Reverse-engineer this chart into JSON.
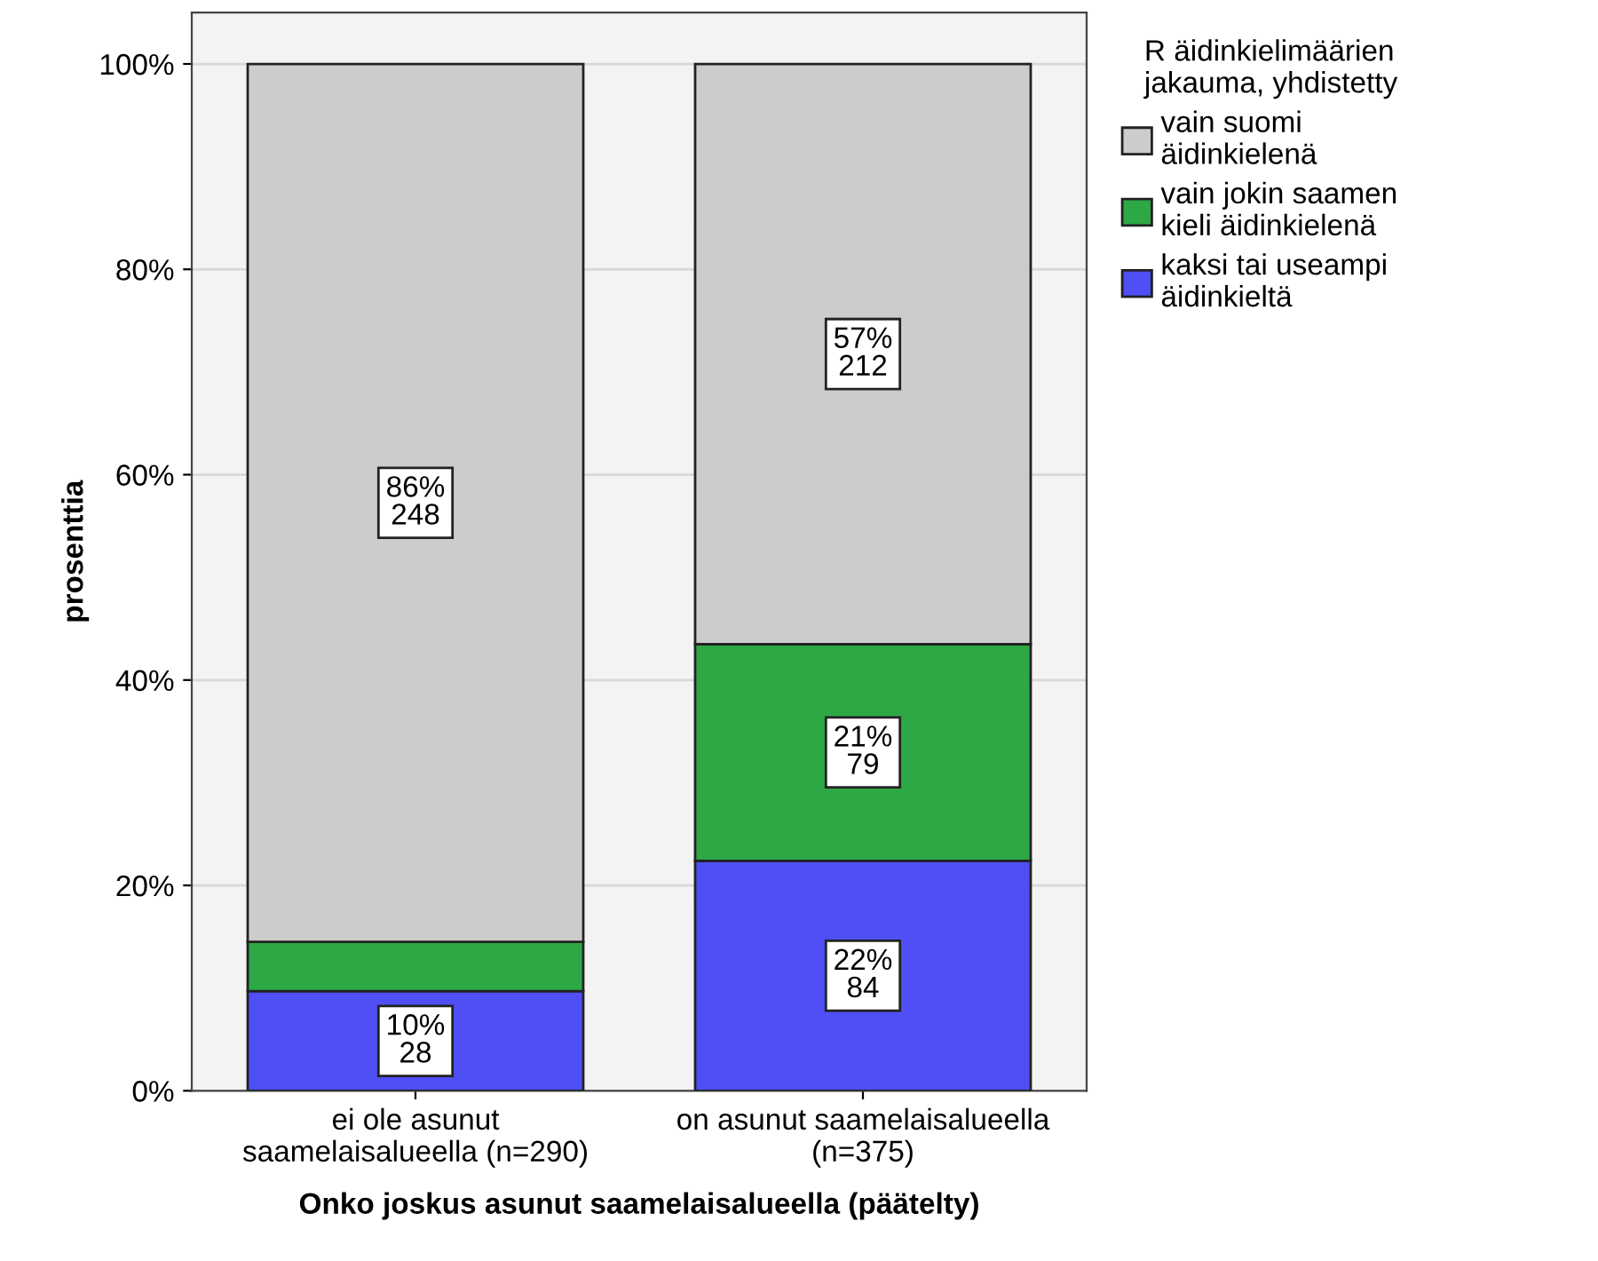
{
  "chart_data": {
    "type": "bar",
    "stacked": true,
    "xlabel": "Onko joskus asunut saamelaisalueella (päätelty)",
    "ylabel": "prosenttia",
    "legend_title": "R äidinkielimäärien\njakauma, yhdistetty",
    "categories": [
      "ei ole asunut\nsaamelaisalueella (n=290)",
      "on asunut saamelaisalueella\n(n=375)"
    ],
    "series": [
      {
        "name": "kaksi tai useampi\näidinkieltä",
        "color": "#4f4ff5",
        "values": [
          9.7,
          22.4
        ],
        "value_labels": [
          "10%\n28",
          "22%\n84"
        ]
      },
      {
        "name": "vain jokin saamen\nkieli äidinkielenä",
        "color": "#2ea845",
        "values": [
          4.8,
          21.1
        ],
        "value_labels": [
          null,
          "21%\n79"
        ]
      },
      {
        "name": "vain suomi\näidinkielenä",
        "color": "#cccccc",
        "values": [
          85.5,
          56.5
        ],
        "value_labels": [
          "86%\n248",
          "57%\n212"
        ]
      }
    ],
    "ylim": [
      0,
      105
    ],
    "yticks": [
      {
        "value": 0,
        "label": "0%"
      },
      {
        "value": 20,
        "label": "20%"
      },
      {
        "value": 40,
        "label": "40%"
      },
      {
        "value": 60,
        "label": "60%"
      },
      {
        "value": 80,
        "label": "80%"
      },
      {
        "value": 100,
        "label": "100%"
      }
    ],
    "grid": "y",
    "legend": "top right"
  }
}
